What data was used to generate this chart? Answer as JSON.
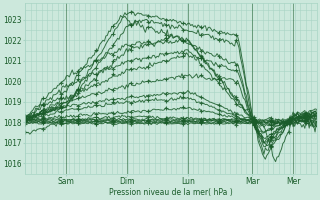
{
  "bg_color": "#cce8dc",
  "grid_color": "#a8d4c4",
  "line_color": "#1a5c2a",
  "ylabel_text": "Pression niveau de la mer( hPa )",
  "day_labels": [
    "Sam",
    "Dim",
    "Lun",
    "Mar",
    "Mer"
  ],
  "ylim": [
    1015.5,
    1023.8
  ],
  "yticks": [
    1016,
    1017,
    1018,
    1019,
    1020,
    1021,
    1022,
    1023
  ],
  "figsize": [
    3.2,
    2.0
  ],
  "dpi": 100
}
